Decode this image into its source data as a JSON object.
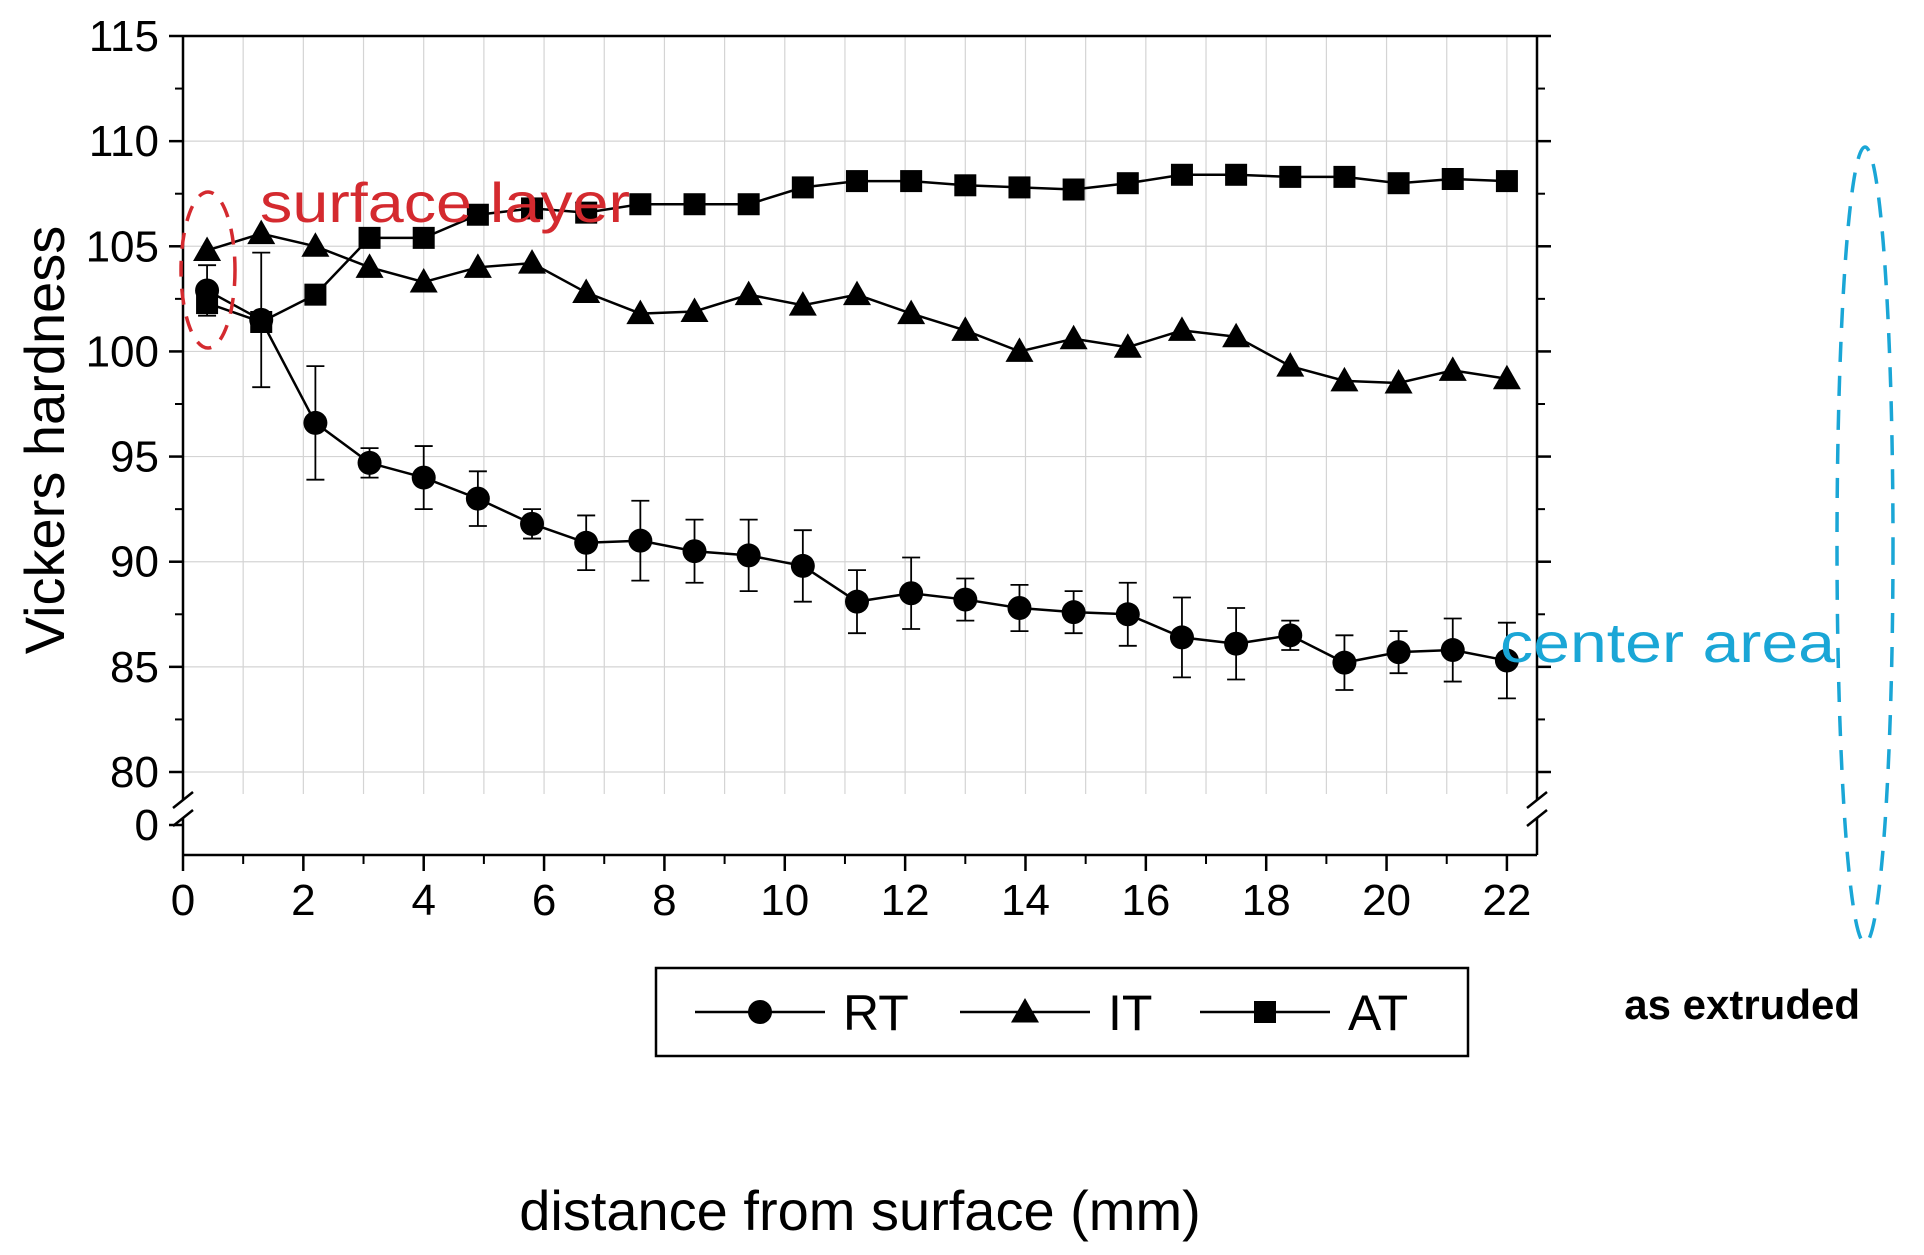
{
  "chart_data": {
    "type": "line",
    "title": "",
    "xlabel": "distance from surface (mm)",
    "ylabel": "Vickers hardness",
    "xlim": [
      0,
      22.5
    ],
    "ylim_broken": {
      "lower_tick": 0,
      "upper_range": [
        78,
        115
      ]
    },
    "xticks": [
      0,
      2,
      4,
      6,
      8,
      10,
      12,
      14,
      16,
      18,
      20,
      22
    ],
    "xtick_labels": [
      "0",
      "2",
      "4",
      "6",
      "8",
      "10",
      "12",
      "14",
      "16",
      "18",
      "20",
      "22"
    ],
    "yticks": [
      80,
      85,
      90,
      95,
      100,
      105,
      110,
      115
    ],
    "ytick_labels": [
      "80",
      "85",
      "90",
      "95",
      "100",
      "105",
      "110",
      "115"
    ],
    "ybreak_tick": 0,
    "ybreak_tick_label": "0",
    "grid": true,
    "legend_position": "bottom-center",
    "x": [
      0.4,
      1.3,
      2.2,
      3.1,
      4.0,
      4.9,
      5.8,
      6.7,
      7.6,
      8.5,
      9.4,
      10.3,
      11.2,
      12.1,
      13.0,
      13.9,
      14.8,
      15.7,
      16.6,
      17.5,
      18.4,
      19.3,
      20.2,
      21.1,
      22.0
    ],
    "series": [
      {
        "name": "RT",
        "marker": "circle",
        "values": [
          102.9,
          101.5,
          96.6,
          94.7,
          94.0,
          93.0,
          91.8,
          90.9,
          91.0,
          90.5,
          90.3,
          89.8,
          88.1,
          88.5,
          88.2,
          87.8,
          87.6,
          87.5,
          86.4,
          86.1,
          86.5,
          85.2,
          85.7,
          85.8,
          85.3
        ],
        "errors": [
          1.2,
          3.2,
          2.7,
          0.7,
          1.5,
          1.3,
          0.7,
          1.3,
          1.9,
          1.5,
          1.7,
          1.7,
          1.5,
          1.7,
          1.0,
          1.1,
          1.0,
          1.5,
          1.9,
          1.7,
          0.7,
          1.3,
          1.0,
          1.5,
          1.8
        ]
      },
      {
        "name": "IT",
        "marker": "triangle",
        "values": [
          104.8,
          105.6,
          105.0,
          104.0,
          103.3,
          104.0,
          104.2,
          102.8,
          101.8,
          101.9,
          102.7,
          102.2,
          102.7,
          101.8,
          101.0,
          100.0,
          100.6,
          100.2,
          101.0,
          100.7,
          99.3,
          98.6,
          98.5,
          99.1,
          98.7
        ]
      },
      {
        "name": "AT",
        "marker": "square",
        "values": [
          102.3,
          101.4,
          102.7,
          105.4,
          105.4,
          106.5,
          106.8,
          106.6,
          107.0,
          107.0,
          107.0,
          107.8,
          108.1,
          108.1,
          107.9,
          107.8,
          107.7,
          108.0,
          108.4,
          108.4,
          108.3,
          108.3,
          108.0,
          108.2,
          108.1
        ]
      }
    ],
    "annotations": {
      "surface": "surface layer",
      "center": "center area",
      "extruded": "as extruded"
    },
    "colors": {
      "surface": "#d42a2f",
      "center": "#1aa6d6",
      "series": "#000000"
    }
  }
}
